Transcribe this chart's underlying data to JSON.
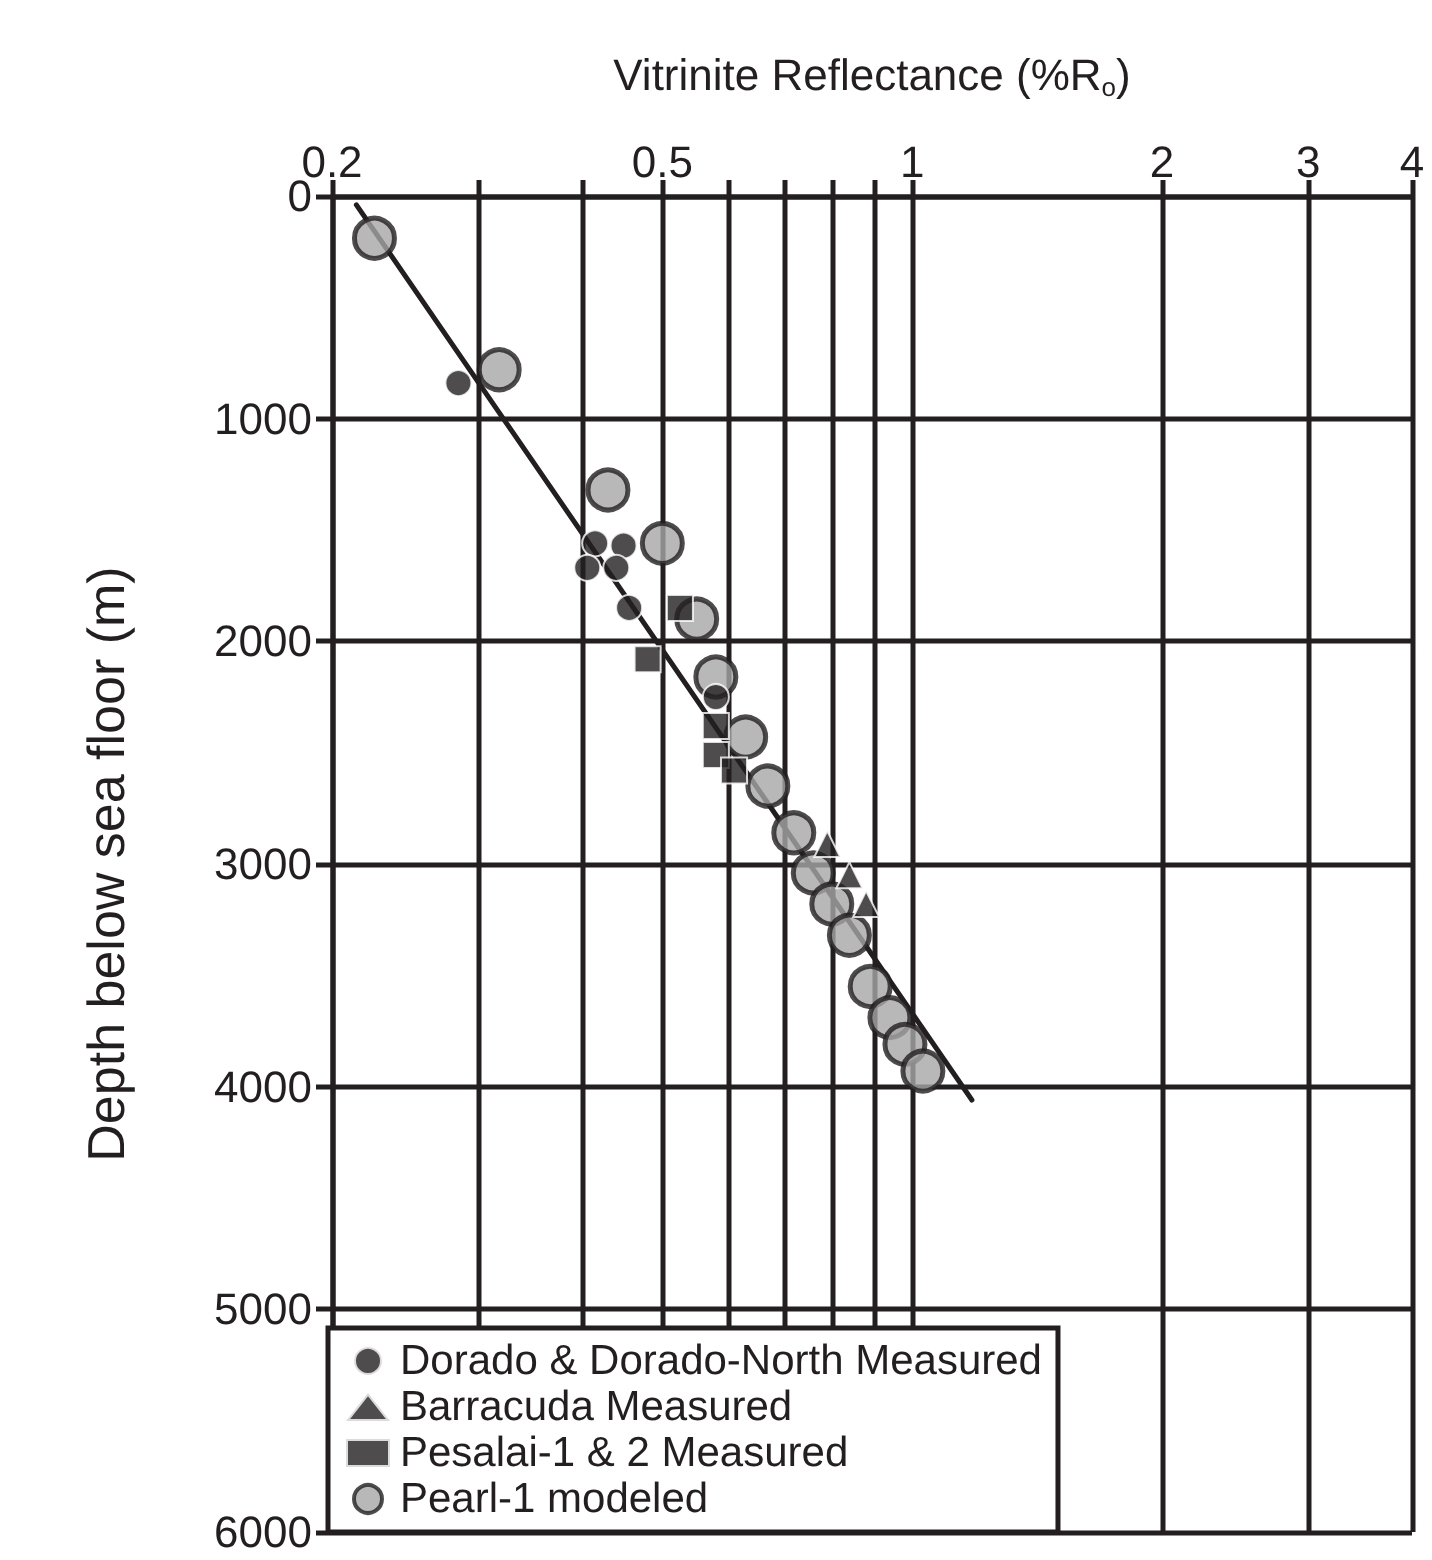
{
  "chart_data": {
    "type": "scatter",
    "xlabel": "Vitrinite Reflectance (%R$_{o}$)",
    "ylabel": "Depth below sea floor (m)",
    "log": "x",
    "xlim": [
      0.2,
      4
    ],
    "xticks": [
      0.2,
      {
        "value": 0.3,
        "label": null
      },
      {
        "value": 0.4,
        "label": null
      },
      0.5,
      {
        "value": 0.6,
        "label": null
      },
      {
        "value": 0.7,
        "label": null
      },
      {
        "value": 0.8,
        "label": null
      },
      {
        "value": 0.9,
        "label": null
      },
      1,
      2,
      3,
      4
    ],
    "ylim": [
      6000,
      0
    ],
    "yticks": [
      0,
      1000,
      2000,
      3000,
      4000,
      5000,
      6000
    ],
    "grid": true,
    "legend": "bottom",
    "series": [
      {
        "name": "Dorado & Dorado-North Measured",
        "color": "#231f20",
        "marker": "circle",
        "x": [
          0.284,
          0.415,
          0.449,
          0.406,
          0.44,
          0.456,
          0.58
        ],
        "values": [
          840,
          1560,
          1570,
          1670,
          1670,
          1850,
          2250
        ]
      },
      {
        "name": "Barracuda Measured",
        "color": "#231f20",
        "marker": "triangle",
        "x": [
          0.79,
          0.84,
          0.88
        ],
        "values": [
          2910,
          3050,
          3180
        ]
      },
      {
        "name": "Pesalai-1 & 2 Measured",
        "color": "#231f20",
        "marker": "square",
        "x": [
          0.525,
          0.48,
          0.58,
          0.58,
          0.61
        ],
        "values": [
          1850,
          2080,
          2380,
          2510,
          2580
        ]
      },
      {
        "name": "Pearl-1 modeled",
        "color": "#a6a6a6",
        "marker": "circle",
        "x": [
          0.225,
          0.318,
          0.43,
          0.5,
          0.55,
          0.58,
          0.63,
          0.67,
          0.72,
          0.76,
          0.8,
          0.84,
          0.89,
          0.94,
          0.98,
          1.03
        ],
        "values": [
          190,
          780,
          1320,
          1560,
          1900,
          2160,
          2430,
          2650,
          2860,
          3040,
          3180,
          3320,
          3550,
          3690,
          3810,
          3930
        ]
      },
      {
        "type": "line",
        "color": "#231f20",
        "marker": "none",
        "x": [
          0.214,
          1.18
        ],
        "values": [
          40,
          4060
        ]
      }
    ]
  }
}
